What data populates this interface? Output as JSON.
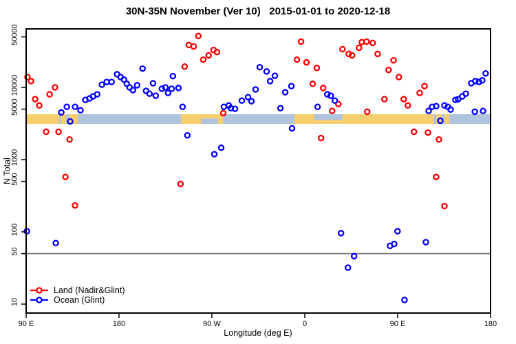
{
  "title": "30N-35N November (Ver 10)   2015-01-01 to 2020-12-18",
  "axes": {
    "x": {
      "label": "Longitude (deg E)",
      "range_deg": [
        90,
        540
      ],
      "ticks": [
        {
          "v": 90,
          "label": "90 E"
        },
        {
          "v": 180,
          "label": "180"
        },
        {
          "v": 270,
          "label": "90 W"
        },
        {
          "v": 360,
          "label": "0"
        },
        {
          "v": 450,
          "label": "90 E"
        },
        {
          "v": 540,
          "label": "180"
        }
      ]
    },
    "y": {
      "label": "N Total",
      "scale": "log10",
      "ticks": [
        {
          "v": 50000,
          "label": "50000"
        },
        {
          "v": 10000,
          "label": "10000"
        },
        {
          "v": 5000,
          "label": "5000"
        },
        {
          "v": 1000,
          "label": "1000"
        },
        {
          "v": 500,
          "label": "500"
        },
        {
          "v": 100,
          "label": "100"
        },
        {
          "v": 50,
          "label": "50"
        },
        {
          "v": 10,
          "label": "10"
        }
      ]
    }
  },
  "reference_line": {
    "value": 50,
    "color": "#777777"
  },
  "colors": {
    "land_series": "#FF0000",
    "ocean_series": "#0000FF",
    "band_land": "#F6CF6F",
    "band_ocean": "#B0C4DE",
    "axis": "#000000"
  },
  "legend": [
    {
      "label": "Land (Nadir&Glint)",
      "color": "#FF0000"
    },
    {
      "label": "Ocean (Glint)",
      "color": "#0000FF"
    }
  ],
  "land_ocean_band": {
    "description": "strip map of 30N-35N latitude band: land vs ocean along longitude",
    "land_segments_deg": [
      [
        90,
        122
      ],
      [
        123.5,
        128.5
      ],
      [
        131.5,
        140
      ],
      [
        240,
        281
      ],
      [
        350,
        485
      ],
      [
        487.5,
        492.5
      ],
      [
        495.5,
        500
      ]
    ],
    "ocean_notches_deg": [
      {
        "range": [
          259.5,
          275.5
        ],
        "side": "bottom",
        "frac": 0.55
      },
      {
        "range": [
          369,
          396.5
        ],
        "side": "top",
        "frac": 0.6
      }
    ]
  },
  "chart_data": {
    "type": "scatter",
    "x_axis": "Longitude (deg E), axis runs 90E→180→90W→0→90E→180 (values 90..540 cumulative deg)",
    "y_axis": "N Total (log scale)",
    "series": [
      {
        "name": "Land (Nadir&Glint)",
        "color": "#FF0000",
        "points": [
          [
            91.3,
            13900
          ],
          [
            94.7,
            12200
          ],
          [
            98.7,
            6870
          ],
          [
            102.7,
            5620
          ],
          [
            112.7,
            8020
          ],
          [
            118,
            10000
          ],
          [
            109.4,
            2430
          ],
          [
            121.4,
            2430
          ],
          [
            132.1,
            1900
          ],
          [
            128.1,
            575
          ],
          [
            137.4,
            232
          ],
          [
            239.6,
            460
          ],
          [
            256.9,
            51500
          ],
          [
            247.6,
            38600
          ],
          [
            252.3,
            36900
          ],
          [
            261.6,
            24200
          ],
          [
            266.9,
            27700
          ],
          [
            271.6,
            33000
          ],
          [
            275,
            30900
          ],
          [
            243.6,
            19400
          ],
          [
            281,
            4400
          ],
          [
            356.4,
            43000
          ],
          [
            352.4,
            24200
          ],
          [
            361.7,
            22200
          ],
          [
            371.7,
            18600
          ],
          [
            367.7,
            11200
          ],
          [
            377.8,
            9800
          ],
          [
            392.5,
            5870
          ],
          [
            386.5,
            4710
          ],
          [
            375.8,
            1990
          ],
          [
            396.5,
            33800
          ],
          [
            402.5,
            29000
          ],
          [
            405.8,
            27700
          ],
          [
            412.5,
            35300
          ],
          [
            415.2,
            42200
          ],
          [
            419.9,
            43000
          ],
          [
            425.9,
            41200
          ],
          [
            430.6,
            29000
          ],
          [
            446,
            23700
          ],
          [
            441.2,
            17400
          ],
          [
            451.2,
            13900
          ],
          [
            437.2,
            6870
          ],
          [
            455.9,
            6870
          ],
          [
            459.9,
            5620
          ],
          [
            476,
            10400
          ],
          [
            471.3,
            8370
          ],
          [
            465.9,
            2430
          ],
          [
            479.3,
            2370
          ],
          [
            490,
            1900
          ],
          [
            487.3,
            575
          ],
          [
            495.3,
            227
          ],
          [
            420.5,
            4600
          ]
        ]
      },
      {
        "name": "Ocean (Glint)",
        "color": "#0000FF",
        "points": [
          [
            124.1,
            4500
          ],
          [
            129.4,
            5380
          ],
          [
            137.4,
            5380
          ],
          [
            142.7,
            4820
          ],
          [
            132.7,
            3380
          ],
          [
            147.4,
            6710
          ],
          [
            151.4,
            7020
          ],
          [
            154.8,
            7500
          ],
          [
            158.8,
            8020
          ],
          [
            163.4,
            10900
          ],
          [
            168.1,
            11900
          ],
          [
            172.8,
            11900
          ],
          [
            178.1,
            15200
          ],
          [
            181.5,
            13900
          ],
          [
            184.8,
            12800
          ],
          [
            187.5,
            11200
          ],
          [
            190.2,
            10000
          ],
          [
            193.5,
            9160
          ],
          [
            197.5,
            10700
          ],
          [
            202.8,
            18200
          ],
          [
            232.2,
            14300
          ],
          [
            212.9,
            11400
          ],
          [
            206.2,
            8950
          ],
          [
            209.5,
            8180
          ],
          [
            215.5,
            7670
          ],
          [
            221.5,
            9570
          ],
          [
            224.9,
            10000
          ],
          [
            227.5,
            8370
          ],
          [
            230.9,
            9570
          ],
          [
            237.6,
            9800
          ],
          [
            241.6,
            5380
          ],
          [
            281.6,
            5380
          ],
          [
            286.3,
            5620
          ],
          [
            288.3,
            5150
          ],
          [
            292.3,
            5040
          ],
          [
            299,
            6560
          ],
          [
            305,
            7330
          ],
          [
            308.3,
            6420
          ],
          [
            312.3,
            9360
          ],
          [
            316.3,
            19000
          ],
          [
            323,
            16600
          ],
          [
            331,
            14500
          ],
          [
            326.4,
            12200
          ],
          [
            341,
            8560
          ],
          [
            347,
            10400
          ],
          [
            336.4,
            5150
          ],
          [
            372.4,
            5380
          ],
          [
            381.8,
            8020
          ],
          [
            385.1,
            7670
          ],
          [
            389.1,
            6560
          ],
          [
            246.2,
            2170
          ],
          [
            272.3,
            1190
          ],
          [
            279,
            1460
          ],
          [
            347.7,
            2710
          ],
          [
            480,
            4710
          ],
          [
            483.3,
            5380
          ],
          [
            487.3,
            5500
          ],
          [
            495.3,
            5620
          ],
          [
            498.6,
            5380
          ],
          [
            501.3,
            4930
          ],
          [
            506,
            6710
          ],
          [
            508.6,
            6870
          ],
          [
            512.6,
            7500
          ],
          [
            516,
            8180
          ],
          [
            521.3,
            11400
          ],
          [
            525.3,
            12200
          ],
          [
            528.7,
            11900
          ],
          [
            532,
            12500
          ],
          [
            535.3,
            15600
          ],
          [
            491.3,
            3450
          ],
          [
            524.7,
            4600
          ],
          [
            532.7,
            4710
          ],
          [
            90.7,
            102
          ],
          [
            118.7,
            70
          ],
          [
            395.1,
            96
          ],
          [
            449.9,
            102
          ],
          [
            442.6,
            64
          ],
          [
            446.6,
            68
          ],
          [
            477.3,
            72
          ],
          [
            407.8,
            46
          ],
          [
            401.8,
            32
          ],
          [
            456.6,
            11.4
          ]
        ]
      }
    ]
  }
}
